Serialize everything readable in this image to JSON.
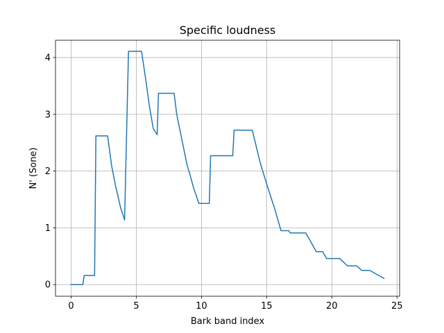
{
  "chart_data": {
    "type": "line",
    "title": "Specific loudness",
    "xlabel": "Bark band index",
    "ylabel": "N' (Sone)",
    "xlim": [
      -1.2,
      25.2
    ],
    "ylim": [
      -0.205,
      4.305
    ],
    "xticks": [
      0,
      5,
      10,
      15,
      20,
      25
    ],
    "yticks": [
      0,
      1,
      2,
      3,
      4
    ],
    "grid": true,
    "legend": "none",
    "colors": {
      "line": "#1f77b4",
      "grid": "#b0b0b0",
      "axes": "#000000"
    },
    "series": [
      {
        "x": [
          0.0,
          0.9,
          1.0,
          1.8,
          1.9,
          2.8,
          3.1,
          3.4,
          3.8,
          4.1,
          4.4,
          4.5,
          5.4,
          5.7,
          6.0,
          6.3,
          6.6,
          6.7,
          7.9,
          8.1,
          8.5,
          8.9,
          9.1,
          9.4,
          9.8,
          10.6,
          10.7,
          12.4,
          12.5,
          13.9,
          14.5,
          15.1,
          15.6,
          16.1,
          16.7,
          16.8,
          18.0,
          18.4,
          18.8,
          19.3,
          19.6,
          20.6,
          21.2,
          21.9,
          22.3,
          22.9,
          23.3,
          24.0
        ],
        "y": [
          0.0,
          0.0,
          0.16,
          0.16,
          2.62,
          2.62,
          2.1,
          1.75,
          1.35,
          1.14,
          4.11,
          4.11,
          4.11,
          3.65,
          3.15,
          2.75,
          2.64,
          3.37,
          3.37,
          3.0,
          2.55,
          2.1,
          1.95,
          1.7,
          1.43,
          1.43,
          2.27,
          2.27,
          2.72,
          2.72,
          2.15,
          1.7,
          1.35,
          0.95,
          0.95,
          0.91,
          0.91,
          0.75,
          0.58,
          0.58,
          0.46,
          0.46,
          0.33,
          0.33,
          0.25,
          0.25,
          0.2,
          0.11
        ]
      }
    ]
  }
}
